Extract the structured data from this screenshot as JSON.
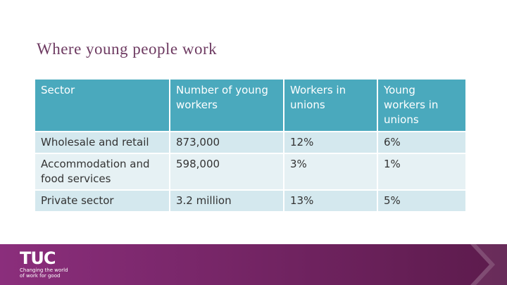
{
  "header": {
    "title": "Where young people work"
  },
  "table": {
    "columns": [
      "Sector",
      "Number of young workers",
      "Workers in unions",
      "Young workers in unions"
    ],
    "rows": [
      [
        "Wholesale and retail",
        "873,000",
        "12%",
        "6%"
      ],
      [
        "Accommodation and food services",
        "598,000",
        "3%",
        "1%"
      ],
      [
        "Private sector",
        "3.2 million",
        "13%",
        "5%"
      ]
    ]
  },
  "footer": {
    "logo": "TUC",
    "tagline": "Changing the world of work for good"
  }
}
